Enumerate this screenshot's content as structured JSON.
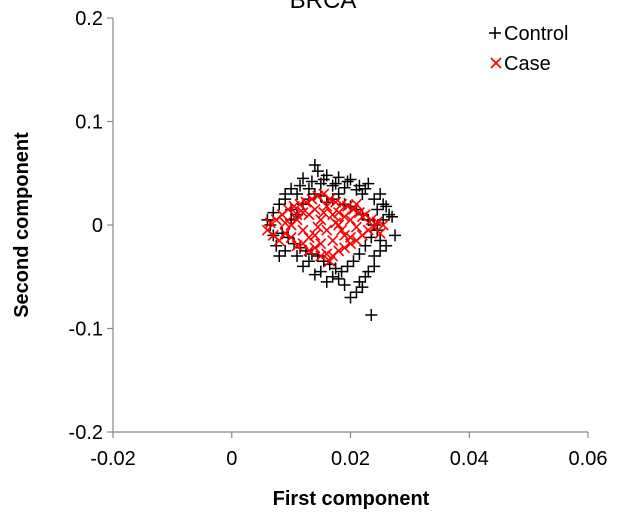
{
  "chart_data": {
    "type": "scatter",
    "title": "BRCA",
    "xlabel": "First component",
    "ylabel": "Second component",
    "xlim": [
      -0.02,
      0.06
    ],
    "ylim": [
      -0.2,
      0.2
    ],
    "x_ticks": [
      "-0.02",
      "0",
      "0.02",
      "0.04",
      "0.06"
    ],
    "y_ticks": [
      "0.2",
      "0.1",
      "0",
      "-0.1",
      "-0.2"
    ],
    "grid": false,
    "legend_position": "top-right",
    "legend": [
      {
        "name": "Control",
        "marker": "+",
        "color": "#000000"
      },
      {
        "name": "Case",
        "marker": "×",
        "color": "#ff0000"
      }
    ],
    "series": [
      {
        "name": "Control",
        "marker": "plus",
        "color": "#000000",
        "points": [
          [
            0.014,
            0.058
          ],
          [
            0.0145,
            0.052
          ],
          [
            0.016,
            0.048
          ],
          [
            0.012,
            0.045
          ],
          [
            0.018,
            0.046
          ],
          [
            0.02,
            0.044
          ],
          [
            0.01,
            0.035
          ],
          [
            0.009,
            0.03
          ],
          [
            0.023,
            0.04
          ],
          [
            0.025,
            0.03
          ],
          [
            0.0255,
            0.02
          ],
          [
            0.026,
            0.018
          ],
          [
            0.0265,
            0.01
          ],
          [
            0.027,
            0.008
          ],
          [
            0.0275,
            -0.01
          ],
          [
            0.026,
            -0.02
          ],
          [
            0.025,
            -0.025
          ],
          [
            0.024,
            -0.03
          ],
          [
            0.023,
            -0.045
          ],
          [
            0.022,
            -0.06
          ],
          [
            0.021,
            -0.065
          ],
          [
            0.02,
            -0.07
          ],
          [
            0.0235,
            -0.087
          ],
          [
            0.0225,
            -0.05
          ],
          [
            0.018,
            -0.052
          ],
          [
            0.016,
            -0.055
          ],
          [
            0.014,
            -0.048
          ],
          [
            0.012,
            -0.04
          ],
          [
            0.008,
            -0.03
          ],
          [
            0.0075,
            -0.02
          ],
          [
            0.007,
            -0.01
          ],
          [
            0.0065,
            0.0
          ],
          [
            0.006,
            0.005
          ],
          [
            0.007,
            0.012
          ],
          [
            0.008,
            0.02
          ],
          [
            0.009,
            0.025
          ],
          [
            0.011,
            0.03
          ],
          [
            0.013,
            0.035
          ],
          [
            0.015,
            0.04
          ],
          [
            0.017,
            0.038
          ],
          [
            0.019,
            0.036
          ],
          [
            0.021,
            0.034
          ],
          [
            0.022,
            0.03
          ],
          [
            0.024,
            0.025
          ],
          [
            0.01,
            0.015
          ],
          [
            0.011,
            0.01
          ],
          [
            0.012,
            0.02
          ],
          [
            0.013,
            0.025
          ],
          [
            0.014,
            0.03
          ],
          [
            0.015,
            0.028
          ],
          [
            0.016,
            0.022
          ],
          [
            0.017,
            0.025
          ],
          [
            0.018,
            0.03
          ],
          [
            0.019,
            0.02
          ],
          [
            0.02,
            0.018
          ],
          [
            0.021,
            0.015
          ],
          [
            0.022,
            0.01
          ],
          [
            0.023,
            0.005
          ],
          [
            0.024,
            0.0
          ],
          [
            0.0245,
            -0.005
          ],
          [
            0.0235,
            -0.012
          ],
          [
            0.0225,
            -0.02
          ],
          [
            0.0215,
            -0.028
          ],
          [
            0.0205,
            -0.035
          ],
          [
            0.0195,
            -0.04
          ],
          [
            0.0185,
            -0.045
          ],
          [
            0.0175,
            -0.042
          ],
          [
            0.0165,
            -0.038
          ],
          [
            0.0155,
            -0.035
          ],
          [
            0.0145,
            -0.03
          ],
          [
            0.0135,
            -0.028
          ],
          [
            0.0125,
            -0.025
          ],
          [
            0.0115,
            -0.022
          ],
          [
            0.0105,
            -0.018
          ],
          [
            0.0095,
            -0.012
          ],
          [
            0.0085,
            -0.008
          ],
          [
            0.01,
            0.005
          ],
          [
            0.0115,
            0.038
          ],
          [
            0.0135,
            0.042
          ],
          [
            0.0155,
            0.044
          ],
          [
            0.0175,
            0.04
          ],
          [
            0.0195,
            0.042
          ],
          [
            0.0215,
            0.038
          ],
          [
            0.0225,
            0.035
          ],
          [
            0.0245,
            0.015
          ],
          [
            0.0255,
            0.005
          ],
          [
            0.025,
            -0.015
          ],
          [
            0.024,
            -0.04
          ],
          [
            0.0215,
            -0.055
          ],
          [
            0.019,
            -0.058
          ],
          [
            0.017,
            -0.05
          ],
          [
            0.015,
            -0.045
          ],
          [
            0.013,
            -0.035
          ],
          [
            0.011,
            -0.03
          ],
          [
            0.009,
            -0.025
          ]
        ]
      },
      {
        "name": "Case",
        "marker": "cross",
        "color": "#ff0000",
        "points": [
          [
            0.006,
            -0.005
          ],
          [
            0.0065,
            0.002
          ],
          [
            0.007,
            -0.01
          ],
          [
            0.0075,
            0.005
          ],
          [
            0.008,
            -0.015
          ],
          [
            0.0085,
            0.01
          ],
          [
            0.009,
            -0.008
          ],
          [
            0.0095,
            0.015
          ],
          [
            0.01,
            -0.012
          ],
          [
            0.0105,
            0.018
          ],
          [
            0.011,
            -0.02
          ],
          [
            0.0115,
            0.02
          ],
          [
            0.012,
            -0.018
          ],
          [
            0.0125,
            0.022
          ],
          [
            0.013,
            -0.025
          ],
          [
            0.0135,
            0.025
          ],
          [
            0.014,
            -0.022
          ],
          [
            0.0145,
            0.028
          ],
          [
            0.015,
            -0.03
          ],
          [
            0.0155,
            0.03
          ],
          [
            0.016,
            -0.028
          ],
          [
            0.0165,
            0.025
          ],
          [
            0.017,
            -0.03
          ],
          [
            0.0175,
            0.022
          ],
          [
            0.018,
            -0.025
          ],
          [
            0.0185,
            0.02
          ],
          [
            0.019,
            -0.022
          ],
          [
            0.0195,
            0.018
          ],
          [
            0.02,
            -0.018
          ],
          [
            0.0205,
            0.015
          ],
          [
            0.021,
            -0.015
          ],
          [
            0.0215,
            0.012
          ],
          [
            0.022,
            -0.01
          ],
          [
            0.0225,
            0.01
          ],
          [
            0.023,
            -0.005
          ],
          [
            0.0235,
            0.005
          ],
          [
            0.024,
            -0.002
          ],
          [
            0.0245,
            0.003
          ],
          [
            0.025,
            -0.008
          ],
          [
            0.0255,
            0.0
          ],
          [
            0.01,
            0.0
          ],
          [
            0.011,
            0.005
          ],
          [
            0.012,
            -0.005
          ],
          [
            0.013,
            0.01
          ],
          [
            0.014,
            -0.01
          ],
          [
            0.015,
            0.005
          ],
          [
            0.016,
            -0.005
          ],
          [
            0.017,
            0.01
          ],
          [
            0.018,
            0.0
          ],
          [
            0.019,
            -0.01
          ],
          [
            0.02,
            0.005
          ],
          [
            0.021,
            -0.002
          ],
          [
            0.022,
            0.008
          ],
          [
            0.012,
            0.012
          ],
          [
            0.014,
            0.015
          ],
          [
            0.016,
            0.018
          ],
          [
            0.018,
            0.012
          ],
          [
            0.02,
            -0.012
          ],
          [
            0.015,
            -0.018
          ],
          [
            0.017,
            -0.015
          ],
          [
            0.013,
            -0.012
          ],
          [
            0.011,
            0.01
          ],
          [
            0.009,
            0.002
          ],
          [
            0.019,
            0.008
          ],
          [
            0.021,
            0.02
          ],
          [
            0.0165,
            -0.035
          ],
          [
            0.0155,
            0.012
          ],
          [
            0.0145,
            -0.002
          ],
          [
            0.0175,
            0.002
          ],
          [
            0.0185,
            -0.005
          ]
        ]
      }
    ]
  }
}
